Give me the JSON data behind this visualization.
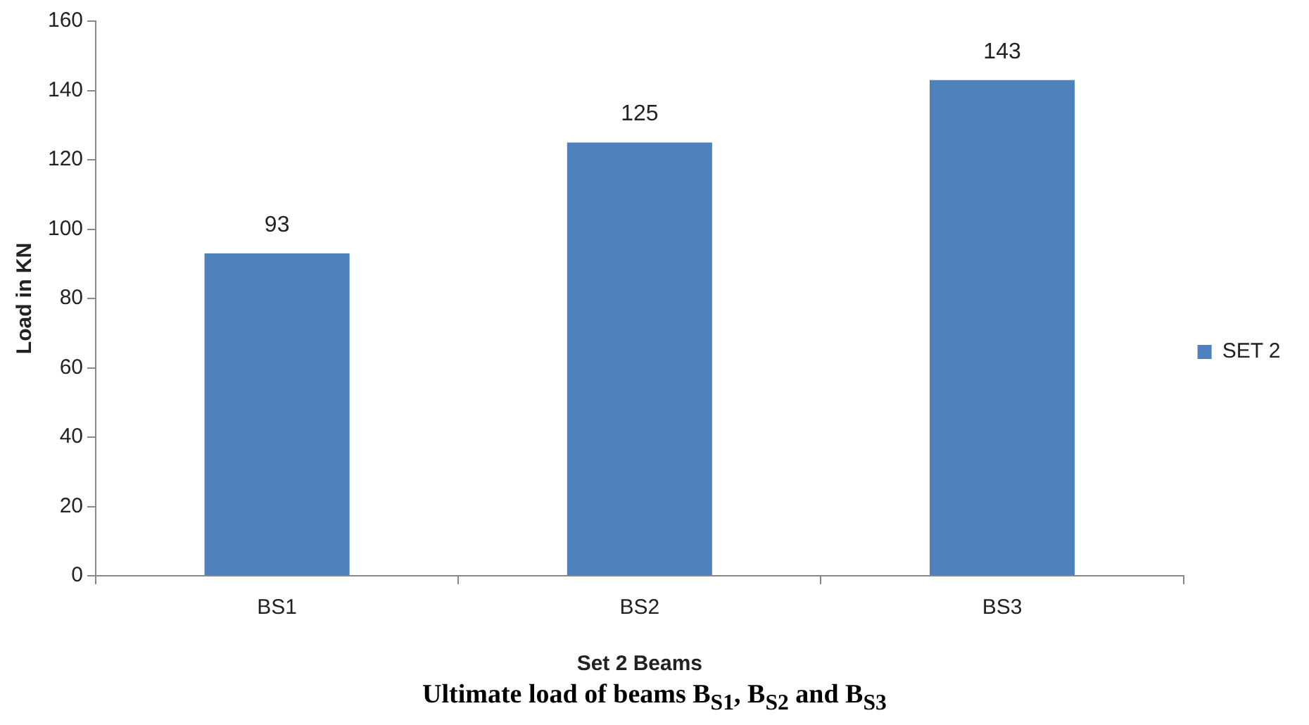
{
  "chart_data": {
    "type": "bar",
    "title": "Ultimate load of beams B$_{S1}$, B$_{S2}$ and B$_{S3}$",
    "xlabel": "Set 2 Beams",
    "ylabel": "Load in KN",
    "categories": [
      "BS1",
      "BS2",
      "BS3"
    ],
    "series": [
      {
        "name": "SET 2",
        "color": "#4f81bd",
        "values": [
          93,
          125,
          143
        ]
      }
    ],
    "ylim": [
      0,
      160
    ],
    "yticks": [
      0,
      20,
      40,
      60,
      80,
      100,
      120,
      140,
      160
    ],
    "data_labels": true,
    "legend": "right"
  }
}
